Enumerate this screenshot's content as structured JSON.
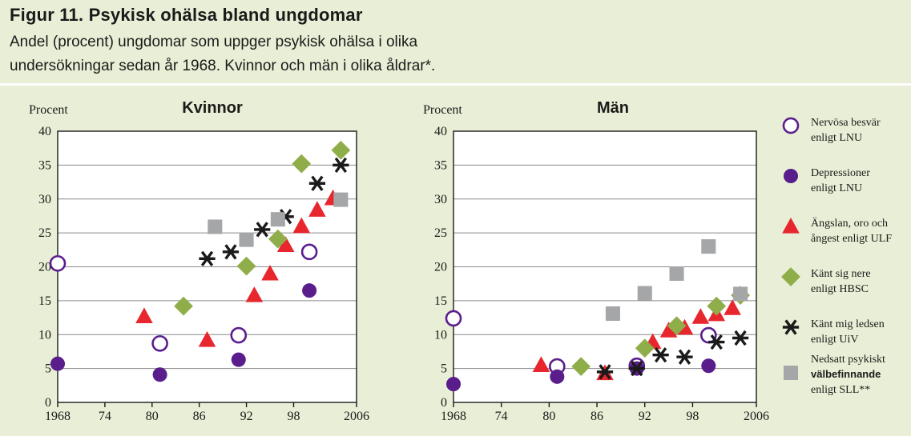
{
  "header": {
    "title": "Figur 11. Psykisk ohälsa bland ungdomar",
    "subtitle_line1": "Andel (procent) ungdomar som uppger psykisk ohälsa i olika",
    "subtitle_line2": "undersökningar sedan år 1968. Kvinnor och män i olika åldrar*."
  },
  "colors": {
    "background": "#e9efd6",
    "plot_background": "#ffffff",
    "purple": "#5a1e8c",
    "red": "#e8262d",
    "green": "#8fae4a",
    "black": "#1a1a1a",
    "gray": "#a5a6a8"
  },
  "legend": [
    {
      "marker": "open-circle",
      "color": "#5a1e8c",
      "lines": [
        "Nervösa besvär",
        "enligt LNU"
      ]
    },
    {
      "marker": "filled-circle",
      "color": "#5a1e8c",
      "lines": [
        "Depressioner",
        "enligt LNU"
      ]
    },
    {
      "marker": "triangle",
      "color": "#e8262d",
      "lines": [
        "Ängslan, oro och",
        "ångest enligt ULF"
      ]
    },
    {
      "marker": "diamond",
      "color": "#8fae4a",
      "lines": [
        "Känt sig nere",
        "enligt HBSC"
      ]
    },
    {
      "marker": "asterisk",
      "color": "#1a1a1a",
      "lines": [
        "Känt mig ledsen",
        "enligt UiV"
      ]
    },
    {
      "marker": "square",
      "color": "#a5a6a8",
      "lines": [
        "Nedsatt psykiskt",
        "välbefinnande",
        "enligt SLL**"
      ],
      "bold_line": 1
    }
  ],
  "chart_data": [
    {
      "type": "scatter",
      "title": "Kvinnor",
      "ylabel": "Procent",
      "xlabel": "",
      "xlim": [
        1968,
        2006
      ],
      "ylim": [
        0,
        40
      ],
      "xticks": [
        1968,
        1974,
        1980,
        1986,
        1992,
        1998,
        2006
      ],
      "xtick_labels": [
        "1968",
        "74",
        "80",
        "86",
        "92",
        "98",
        "2006"
      ],
      "yticks": [
        0,
        5,
        10,
        15,
        20,
        25,
        30,
        35,
        40
      ],
      "ytick_labels": [
        "0",
        "5",
        "10",
        "15",
        "20",
        "25",
        "30",
        "35",
        "40"
      ],
      "grid": true,
      "series": [
        {
          "name": "Nervösa besvär enligt LNU",
          "marker": "open-circle",
          "x": [
            1968,
            1981,
            1991,
            2000
          ],
          "y": [
            20.5,
            8.7,
            9.9,
            22.2
          ]
        },
        {
          "name": "Depressioner enligt LNU",
          "marker": "filled-circle",
          "x": [
            1968,
            1981,
            1991,
            2000
          ],
          "y": [
            5.7,
            4.1,
            6.3,
            16.5
          ]
        },
        {
          "name": "Ängslan, oro och ångest enligt ULF",
          "marker": "triangle",
          "x": [
            1979,
            1987,
            1993,
            1995,
            1997,
            1999,
            2001,
            2003
          ],
          "y": [
            12.7,
            9.2,
            15.8,
            19.0,
            23.2,
            26.0,
            28.4,
            30.1
          ]
        },
        {
          "name": "Känt sig nere enligt HBSC",
          "marker": "diamond",
          "x": [
            1984,
            1992,
            1996,
            1999,
            2004
          ],
          "y": [
            14.2,
            20.1,
            24.1,
            35.2,
            37.2
          ]
        },
        {
          "name": "Känt mig ledsen enligt UiV",
          "marker": "asterisk",
          "x": [
            1987,
            1990,
            1994,
            1997,
            2001,
            2004
          ],
          "y": [
            21.2,
            22.2,
            25.5,
            27.4,
            32.3,
            35.0
          ]
        },
        {
          "name": "Nedsatt psykiskt välbefinnande enligt SLL**",
          "marker": "square",
          "x": [
            1988,
            1992,
            1996,
            2004
          ],
          "y": [
            25.9,
            24.0,
            27.0,
            29.9
          ]
        }
      ]
    },
    {
      "type": "scatter",
      "title": "Män",
      "ylabel": "Procent",
      "xlabel": "",
      "xlim": [
        1968,
        2006
      ],
      "ylim": [
        0,
        40
      ],
      "xticks": [
        1968,
        1974,
        1980,
        1986,
        1992,
        1998,
        2006
      ],
      "xtick_labels": [
        "1968",
        "74",
        "80",
        "86",
        "92",
        "98",
        "2006"
      ],
      "yticks": [
        0,
        5,
        10,
        15,
        20,
        25,
        30,
        35,
        40
      ],
      "ytick_labels": [
        "0",
        "5",
        "10",
        "15",
        "20",
        "25",
        "30",
        "35",
        "40"
      ],
      "grid": true,
      "series": [
        {
          "name": "Nervösa besvär enligt LNU",
          "marker": "open-circle",
          "x": [
            1968,
            1981,
            1991,
            2000
          ],
          "y": [
            12.4,
            5.3,
            5.4,
            9.9
          ]
        },
        {
          "name": "Depressioner enligt LNU",
          "marker": "filled-circle",
          "x": [
            1968,
            1981,
            1991,
            2000
          ],
          "y": [
            2.7,
            3.8,
            5.0,
            5.4
          ]
        },
        {
          "name": "Ängslan, oro och ångest enligt ULF",
          "marker": "triangle",
          "x": [
            1979,
            1987,
            1993,
            1995,
            1997,
            1999,
            2001,
            2003
          ],
          "y": [
            5.5,
            4.3,
            8.9,
            10.6,
            11.0,
            12.6,
            13.0,
            13.9
          ]
        },
        {
          "name": "Känt sig nere enligt HBSC",
          "marker": "diamond",
          "x": [
            1984,
            1992,
            1996,
            2001,
            2004
          ],
          "y": [
            5.3,
            8.0,
            11.3,
            14.2,
            15.8
          ]
        },
        {
          "name": "Känt mig ledsen enligt UiV",
          "marker": "asterisk",
          "x": [
            1987,
            1991,
            1994,
            1997,
            2001,
            2004
          ],
          "y": [
            4.5,
            5.0,
            7.0,
            6.7,
            8.9,
            9.5
          ]
        },
        {
          "name": "Nedsatt psykiskt välbefinnande enligt SLL**",
          "marker": "square",
          "x": [
            1988,
            1992,
            1996,
            2000,
            2004
          ],
          "y": [
            13.1,
            16.1,
            19.0,
            23.0,
            16.0
          ]
        }
      ]
    }
  ]
}
